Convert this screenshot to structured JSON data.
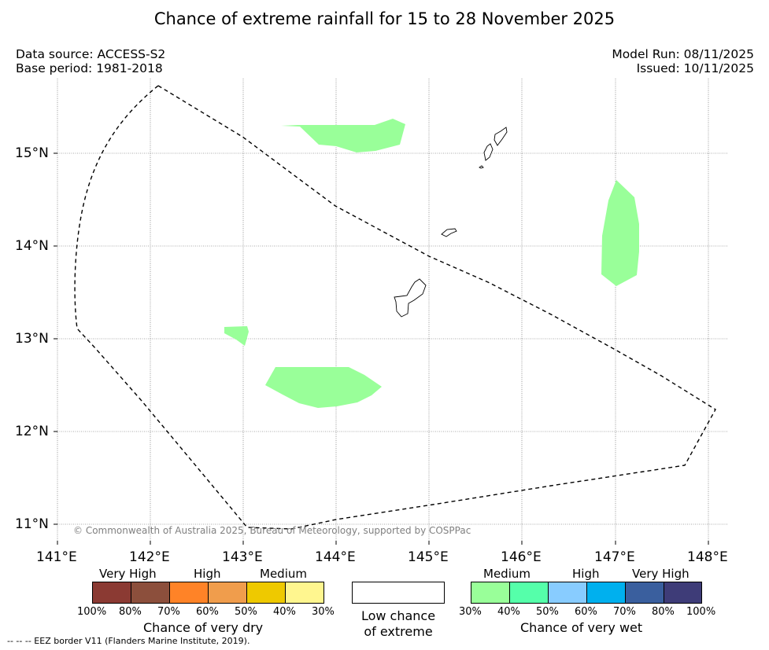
{
  "title": "Chance of extreme rainfall for 15 to 28 November 2025",
  "meta": {
    "data_source": "Data source: ACCESS-S2",
    "base_period": "Base period: 1981-2018",
    "model_run": "Model Run: 08/11/2025",
    "issued": "Issued: 10/11/2025"
  },
  "map": {
    "lon_range": [
      141.0,
      148.2
    ],
    "lat_range": [
      10.85,
      15.8
    ],
    "lon_labels": [
      "141°E",
      "142°E",
      "143°E",
      "144°E",
      "145°E",
      "146°E",
      "147°E",
      "148°E"
    ],
    "lat_labels": [
      "11°N",
      "12°N",
      "13°N",
      "14°N",
      "15°N"
    ],
    "copyright": "© Commonwealth of Australia 2025, Bureau of Meteorology, supported by COSPPac",
    "colors": {
      "wet_30_40": "#99ff99",
      "coastline": "#000000",
      "eez_border": "#000000"
    }
  },
  "legend": {
    "dry": {
      "title": "Chance of very dry",
      "levels": [
        "Very High",
        "High",
        "Medium"
      ],
      "colors": [
        "#8b3a33",
        "#8c4f3c",
        "#ff8327",
        "#f09d4c",
        "#eec900",
        "#fff68f"
      ],
      "ticks": [
        "100%",
        "80%",
        "70%",
        "60%",
        "50%",
        "40%",
        "30%"
      ]
    },
    "low": {
      "line1": "Low chance",
      "line2": "of extreme"
    },
    "wet": {
      "title": "Chance of very wet",
      "levels": [
        "Medium",
        "High",
        "Very High"
      ],
      "colors": [
        "#99ff99",
        "#55ffaa",
        "#88ccff",
        "#00b0ee",
        "#3a5f9e",
        "#3e3c78"
      ],
      "ticks": [
        "30%",
        "40%",
        "50%",
        "60%",
        "70%",
        "80%",
        "100%"
      ]
    },
    "eez_note": "--  --  -- EEZ border V11 (Flanders Marine Institute, 2019)."
  }
}
